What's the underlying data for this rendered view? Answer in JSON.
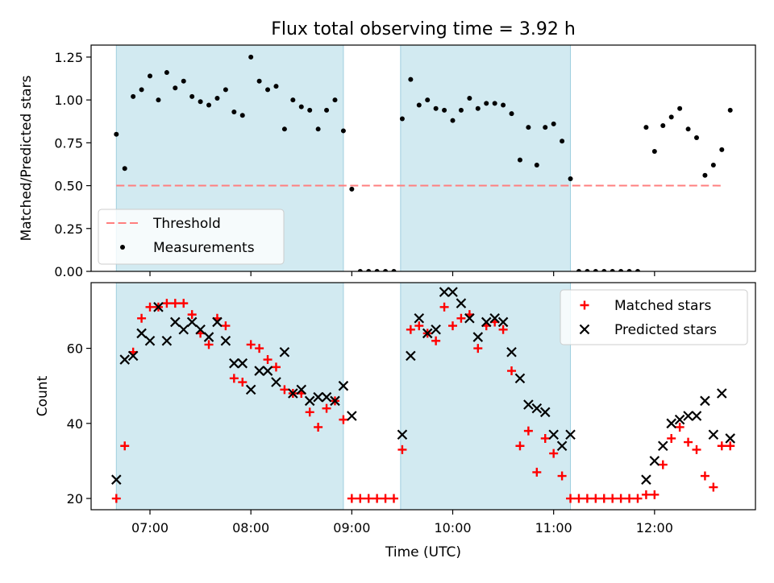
{
  "chart_data": {
    "title": "Flux total observing time = 3.92 h",
    "xlabel": "Time (UTC)",
    "x_ticks": [
      "07:00",
      "08:00",
      "09:00",
      "10:00",
      "11:00",
      "12:00"
    ],
    "x_tick_times": [
      "07:00",
      "08:00",
      "09:00",
      "10:00",
      "11:00",
      "12:00"
    ],
    "xlim": [
      "06:25",
      "13:00"
    ],
    "shaded_intervals": [
      [
        "06:40",
        "08:55"
      ],
      [
        "09:29",
        "11:10"
      ]
    ],
    "shade_color": "#add8e6",
    "panels": [
      {
        "type": "scatter",
        "ylabel": "Matched/Predicted stars",
        "ylim": [
          0,
          1.32
        ],
        "y_ticks": [
          "0.00",
          "0.25",
          "0.50",
          "0.75",
          "1.00",
          "1.25"
        ],
        "legend_position": "lower-left",
        "threshold": {
          "name": "Threshold",
          "value": 0.5,
          "x_range": [
            "06:40",
            "12:40"
          ],
          "color": "#ff7f7f"
        },
        "series": [
          {
            "name": "Measurements",
            "color": "#000000",
            "marker": "dot",
            "points": [
              [
                "06:40",
                0.8
              ],
              [
                "06:45",
                0.6
              ],
              [
                "06:50",
                1.02
              ],
              [
                "06:55",
                1.06
              ],
              [
                "07:00",
                1.14
              ],
              [
                "07:05",
                1.0
              ],
              [
                "07:10",
                1.16
              ],
              [
                "07:15",
                1.07
              ],
              [
                "07:20",
                1.11
              ],
              [
                "07:25",
                1.02
              ],
              [
                "07:30",
                0.99
              ],
              [
                "07:35",
                0.97
              ],
              [
                "07:40",
                1.01
              ],
              [
                "07:45",
                1.06
              ],
              [
                "07:50",
                0.93
              ],
              [
                "07:55",
                0.91
              ],
              [
                "08:00",
                1.25
              ],
              [
                "08:05",
                1.11
              ],
              [
                "08:10",
                1.06
              ],
              [
                "08:15",
                1.08
              ],
              [
                "08:20",
                0.83
              ],
              [
                "08:25",
                1.0
              ],
              [
                "08:30",
                0.96
              ],
              [
                "08:35",
                0.94
              ],
              [
                "08:40",
                0.83
              ],
              [
                "08:45",
                0.94
              ],
              [
                "08:50",
                1.0
              ],
              [
                "08:55",
                0.82
              ],
              [
                "09:00",
                0.48
              ],
              [
                "09:05",
                0.0
              ],
              [
                "09:10",
                0.0
              ],
              [
                "09:15",
                0.0
              ],
              [
                "09:20",
                0.0
              ],
              [
                "09:25",
                0.0
              ],
              [
                "09:30",
                0.89
              ],
              [
                "09:35",
                1.12
              ],
              [
                "09:40",
                0.97
              ],
              [
                "09:45",
                1.0
              ],
              [
                "09:50",
                0.95
              ],
              [
                "09:55",
                0.94
              ],
              [
                "10:00",
                0.88
              ],
              [
                "10:05",
                0.94
              ],
              [
                "10:10",
                1.01
              ],
              [
                "10:15",
                0.95
              ],
              [
                "10:20",
                0.98
              ],
              [
                "10:25",
                0.98
              ],
              [
                "10:30",
                0.97
              ],
              [
                "10:35",
                0.92
              ],
              [
                "10:40",
                0.65
              ],
              [
                "10:45",
                0.84
              ],
              [
                "10:50",
                0.62
              ],
              [
                "10:55",
                0.84
              ],
              [
                "11:00",
                0.86
              ],
              [
                "11:05",
                0.76
              ],
              [
                "11:10",
                0.54
              ],
              [
                "11:15",
                0.0
              ],
              [
                "11:20",
                0.0
              ],
              [
                "11:25",
                0.0
              ],
              [
                "11:30",
                0.0
              ],
              [
                "11:35",
                0.0
              ],
              [
                "11:40",
                0.0
              ],
              [
                "11:45",
                0.0
              ],
              [
                "11:50",
                0.0
              ],
              [
                "11:55",
                0.84
              ],
              [
                "12:00",
                0.7
              ],
              [
                "12:05",
                0.85
              ],
              [
                "12:10",
                0.9
              ],
              [
                "12:15",
                0.95
              ],
              [
                "12:20",
                0.83
              ],
              [
                "12:25",
                0.78
              ],
              [
                "12:30",
                0.56
              ],
              [
                "12:35",
                0.62
              ],
              [
                "12:40",
                0.71
              ],
              [
                "12:45",
                0.94
              ]
            ]
          }
        ]
      },
      {
        "type": "scatter",
        "ylabel": "Count",
        "ylim": [
          17,
          77.5
        ],
        "y_ticks": [
          "20",
          "40",
          "60"
        ],
        "legend_position": "top-right",
        "series": [
          {
            "name": "Matched stars",
            "color": "#ff0000",
            "marker": "plus",
            "points": [
              [
                "06:40",
                20
              ],
              [
                "06:45",
                34
              ],
              [
                "06:50",
                59
              ],
              [
                "06:55",
                68
              ],
              [
                "07:00",
                71
              ],
              [
                "07:05",
                71
              ],
              [
                "07:10",
                72
              ],
              [
                "07:15",
                72
              ],
              [
                "07:20",
                72
              ],
              [
                "07:25",
                69
              ],
              [
                "07:30",
                64
              ],
              [
                "07:35",
                61
              ],
              [
                "07:40",
                68
              ],
              [
                "07:45",
                66
              ],
              [
                "07:50",
                52
              ],
              [
                "07:55",
                51
              ],
              [
                "08:00",
                61
              ],
              [
                "08:05",
                60
              ],
              [
                "08:10",
                57
              ],
              [
                "08:15",
                55
              ],
              [
                "08:20",
                49
              ],
              [
                "08:25",
                48
              ],
              [
                "08:30",
                48
              ],
              [
                "08:35",
                43
              ],
              [
                "08:40",
                39
              ],
              [
                "08:45",
                44
              ],
              [
                "08:50",
                46
              ],
              [
                "08:55",
                41
              ],
              [
                "09:00",
                20
              ],
              [
                "09:05",
                20
              ],
              [
                "09:10",
                20
              ],
              [
                "09:15",
                20
              ],
              [
                "09:20",
                20
              ],
              [
                "09:25",
                20
              ],
              [
                "09:30",
                33
              ],
              [
                "09:35",
                65
              ],
              [
                "09:40",
                66
              ],
              [
                "09:45",
                64
              ],
              [
                "09:50",
                62
              ],
              [
                "09:55",
                71
              ],
              [
                "10:00",
                66
              ],
              [
                "10:05",
                68
              ],
              [
                "10:10",
                69
              ],
              [
                "10:15",
                60
              ],
              [
                "10:20",
                66
              ],
              [
                "10:25",
                67
              ],
              [
                "10:30",
                65
              ],
              [
                "10:35",
                54
              ],
              [
                "10:40",
                34
              ],
              [
                "10:45",
                38
              ],
              [
                "10:50",
                27
              ],
              [
                "10:55",
                36
              ],
              [
                "11:00",
                32
              ],
              [
                "11:05",
                26
              ],
              [
                "11:10",
                20
              ],
              [
                "11:15",
                20
              ],
              [
                "11:20",
                20
              ],
              [
                "11:25",
                20
              ],
              [
                "11:30",
                20
              ],
              [
                "11:35",
                20
              ],
              [
                "11:40",
                20
              ],
              [
                "11:45",
                20
              ],
              [
                "11:50",
                20
              ],
              [
                "11:55",
                21
              ],
              [
                "12:00",
                21
              ],
              [
                "12:05",
                29
              ],
              [
                "12:10",
                36
              ],
              [
                "12:15",
                39
              ],
              [
                "12:20",
                35
              ],
              [
                "12:25",
                33
              ],
              [
                "12:30",
                26
              ],
              [
                "12:35",
                23
              ],
              [
                "12:40",
                34
              ],
              [
                "12:45",
                34
              ]
            ]
          },
          {
            "name": "Predicted stars",
            "color": "#000000",
            "marker": "x",
            "points": [
              [
                "06:40",
                25
              ],
              [
                "06:45",
                57
              ],
              [
                "06:50",
                58
              ],
              [
                "06:55",
                64
              ],
              [
                "07:00",
                62
              ],
              [
                "07:05",
                71
              ],
              [
                "07:10",
                62
              ],
              [
                "07:15",
                67
              ],
              [
                "07:20",
                65
              ],
              [
                "07:25",
                67
              ],
              [
                "07:30",
                65
              ],
              [
                "07:35",
                63
              ],
              [
                "07:40",
                67
              ],
              [
                "07:45",
                62
              ],
              [
                "07:50",
                56
              ],
              [
                "07:55",
                56
              ],
              [
                "08:00",
                49
              ],
              [
                "08:05",
                54
              ],
              [
                "08:10",
                54
              ],
              [
                "08:15",
                51
              ],
              [
                "08:20",
                59
              ],
              [
                "08:25",
                48
              ],
              [
                "08:30",
                49
              ],
              [
                "08:35",
                46
              ],
              [
                "08:40",
                47
              ],
              [
                "08:45",
                47
              ],
              [
                "08:50",
                46
              ],
              [
                "08:55",
                50
              ],
              [
                "09:00",
                42
              ],
              [
                "09:30",
                37
              ],
              [
                "09:35",
                58
              ],
              [
                "09:40",
                68
              ],
              [
                "09:45",
                64
              ],
              [
                "09:50",
                65
              ],
              [
                "09:55",
                75
              ],
              [
                "10:00",
                75
              ],
              [
                "10:05",
                72
              ],
              [
                "10:10",
                68
              ],
              [
                "10:15",
                63
              ],
              [
                "10:20",
                67
              ],
              [
                "10:25",
                68
              ],
              [
                "10:30",
                67
              ],
              [
                "10:35",
                59
              ],
              [
                "10:40",
                52
              ],
              [
                "10:45",
                45
              ],
              [
                "10:50",
                44
              ],
              [
                "10:55",
                43
              ],
              [
                "11:00",
                37
              ],
              [
                "11:05",
                34
              ],
              [
                "11:10",
                37
              ],
              [
                "11:55",
                25
              ],
              [
                "12:00",
                30
              ],
              [
                "12:05",
                34
              ],
              [
                "12:10",
                40
              ],
              [
                "12:15",
                41
              ],
              [
                "12:20",
                42
              ],
              [
                "12:25",
                42
              ],
              [
                "12:30",
                46
              ],
              [
                "12:35",
                37
              ],
              [
                "12:40",
                48
              ],
              [
                "12:45",
                36
              ]
            ]
          }
        ]
      }
    ]
  }
}
